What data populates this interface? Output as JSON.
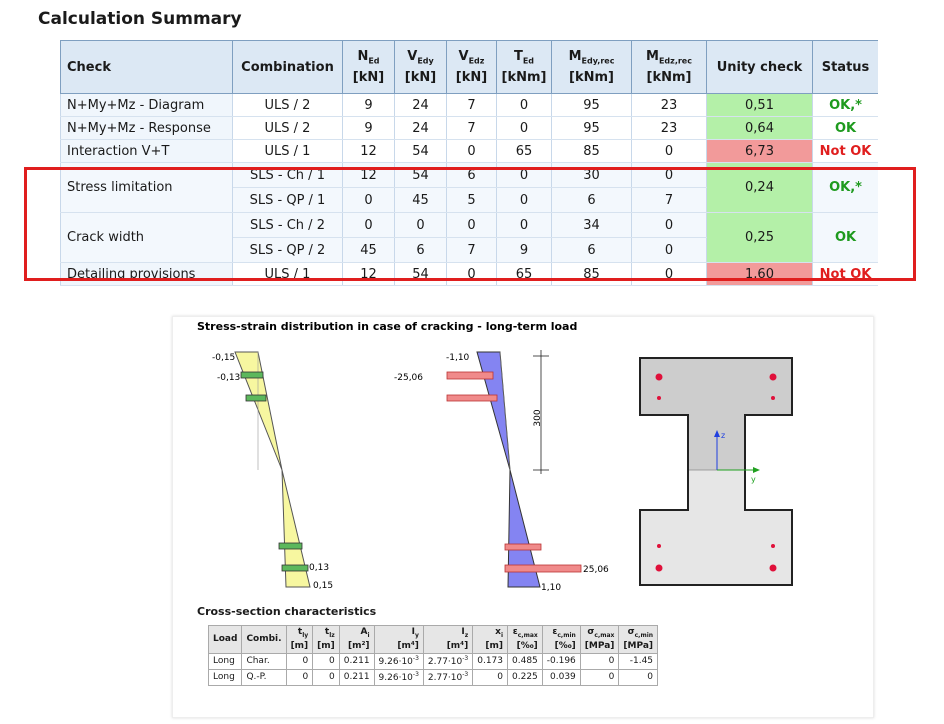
{
  "summary": {
    "title": "Calculation Summary",
    "header": [
      {
        "text": "Check"
      },
      {
        "text": "Combination"
      },
      {
        "symbol": "N",
        "sub": "Ed",
        "unit": "[kN]"
      },
      {
        "symbol": "V",
        "sub": "Edy",
        "unit": "[kN]"
      },
      {
        "symbol": "V",
        "sub": "Edz",
        "unit": "[kN]"
      },
      {
        "symbol": "T",
        "sub": "Ed",
        "unit": "[kNm]"
      },
      {
        "symbol": "M",
        "sub": "Edy,rec",
        "unit": "[kNm]"
      },
      {
        "symbol": "M",
        "sub": "Edz,rec",
        "unit": "[kNm]"
      },
      {
        "text": "Unity check"
      },
      {
        "text": "Status"
      }
    ],
    "rows": [
      {
        "check": "N+My+Mz - Diagram",
        "combinations": [
          {
            "name": "ULS / 2",
            "values": [
              "9",
              "24",
              "7",
              "0",
              "95",
              "23"
            ]
          }
        ],
        "unity": "0,51",
        "status": "OK,*",
        "unity_color": "#b4f0a8",
        "status_color": "#1e9a1e"
      },
      {
        "check": "N+My+Mz - Response",
        "combinations": [
          {
            "name": "ULS / 2",
            "values": [
              "9",
              "24",
              "7",
              "0",
              "95",
              "23"
            ]
          }
        ],
        "unity": "0,64",
        "status": "OK",
        "unity_color": "#b4f0a8",
        "status_color": "#1e9a1e"
      },
      {
        "check": "Interaction V+T",
        "combinations": [
          {
            "name": "ULS / 1",
            "values": [
              "12",
              "54",
              "0",
              "65",
              "85",
              "0"
            ]
          }
        ],
        "unity": "6,73",
        "status": "Not OK",
        "unity_color": "#f29a9a",
        "status_color": "#e01e1e"
      },
      {
        "check": "Stress limitation",
        "combinations": [
          {
            "name": "SLS - Ch / 1",
            "values": [
              "12",
              "54",
              "6",
              "0",
              "30",
              "0"
            ]
          },
          {
            "name": "SLS - QP / 1",
            "values": [
              "0",
              "45",
              "5",
              "0",
              "6",
              "7"
            ]
          }
        ],
        "unity": "0,24",
        "status": "OK,*",
        "unity_color": "#b4f0a8",
        "status_color": "#1e9a1e"
      },
      {
        "check": "Crack width",
        "combinations": [
          {
            "name": "SLS - Ch / 2",
            "values": [
              "0",
              "0",
              "0",
              "0",
              "34",
              "0"
            ]
          },
          {
            "name": "SLS - QP / 2",
            "values": [
              "45",
              "6",
              "7",
              "9",
              "6",
              "0"
            ]
          }
        ],
        "unity": "0,25",
        "status": "OK",
        "unity_color": "#b4f0a8",
        "status_color": "#1e9a1e"
      },
      {
        "check": "Detailing provisions",
        "combinations": [
          {
            "name": "ULS / 1",
            "values": [
              "12",
              "54",
              "0",
              "65",
              "85",
              "0"
            ]
          }
        ],
        "unity": "1,60",
        "status": "Not OK",
        "unity_color": "#f29a9a",
        "status_color": "#e01e1e"
      }
    ]
  },
  "stress_strain": {
    "title": "Stress-strain distribution in case of cracking - long-term load",
    "strain_labels": [
      "-0,15",
      "-0,13",
      "0,13",
      "0,15"
    ],
    "stress_labels": [
      "-1,10",
      "-25,06",
      "25,06",
      "1,10"
    ],
    "dimension": "300",
    "axis_z": "z",
    "axis_y": "y"
  },
  "characteristics": {
    "title": "Cross-section characteristics",
    "header": [
      {
        "symbol": "Load"
      },
      {
        "symbol": "Combi."
      },
      {
        "symbol": "t",
        "sub": "ly",
        "unit": "[m]"
      },
      {
        "symbol": "t",
        "sub": "lz",
        "unit": "[m]"
      },
      {
        "symbol": "A",
        "sub": "i",
        "unit": "[m²]"
      },
      {
        "symbol": "I",
        "sub": "y",
        "unit": "[m⁴]"
      },
      {
        "symbol": "I",
        "sub": "z",
        "unit": "[m⁴]"
      },
      {
        "symbol": "x",
        "sub": "i",
        "unit": "[m]"
      },
      {
        "symbol": "ε",
        "sub": "c,max",
        "unit": "[‰]"
      },
      {
        "symbol": "ε",
        "sub": "c,min",
        "unit": "[‰]"
      },
      {
        "symbol": "σ",
        "sub": "c,max",
        "unit": "[MPa]"
      },
      {
        "symbol": "σ",
        "sub": "c,min",
        "unit": "[MPa]"
      }
    ],
    "rows": [
      [
        "Long",
        "Char.",
        "0",
        "0",
        "0.211",
        {
          "base": "9.26·10",
          "exp": "-3"
        },
        {
          "base": "2.77·10",
          "exp": "-3"
        },
        "0.173",
        "0.485",
        "-0.196",
        "0",
        "-1.45"
      ],
      [
        "Long",
        "Q.-P.",
        "0",
        "0",
        "0.211",
        {
          "base": "9.26·10",
          "exp": "-3"
        },
        {
          "base": "2.77·10",
          "exp": "-3"
        },
        "0",
        "0.225",
        "0.039",
        "0",
        "0"
      ]
    ]
  }
}
